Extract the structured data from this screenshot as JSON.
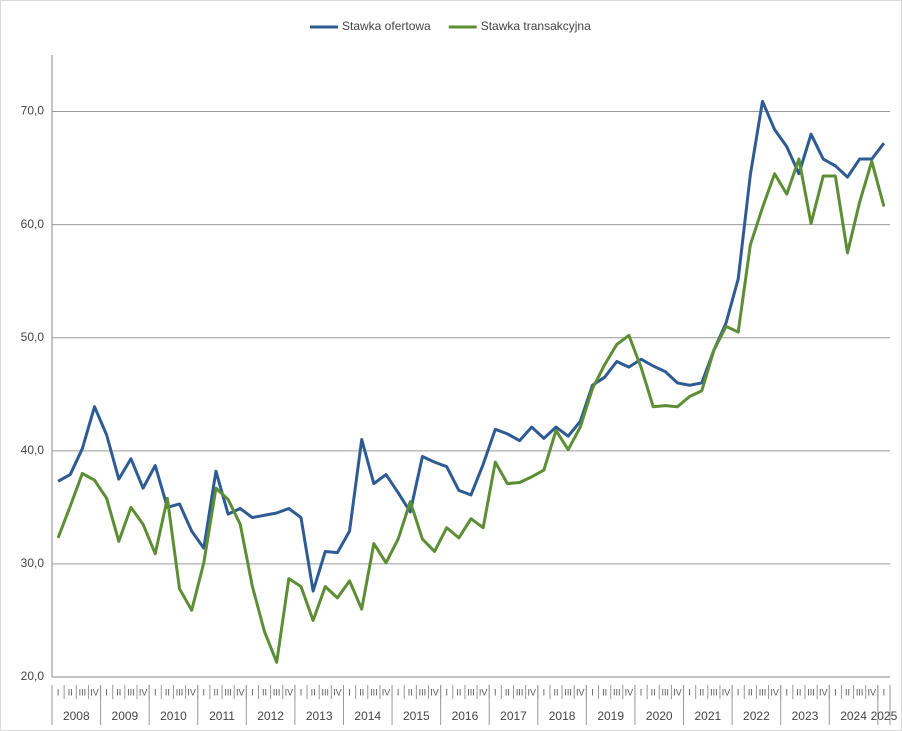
{
  "chart_data": {
    "type": "line",
    "categories": [
      "I",
      "II",
      "III",
      "IV",
      "I",
      "II",
      "III",
      "IV",
      "I",
      "II",
      "III",
      "IV",
      "I",
      "II",
      "III",
      "IV",
      "I",
      "II",
      "III",
      "IV",
      "I",
      "II",
      "III",
      "IV",
      "I",
      "II",
      "III",
      "IV",
      "I",
      "II",
      "III",
      "IV",
      "I",
      "II",
      "III",
      "IV",
      "I",
      "II",
      "III",
      "IV",
      "I",
      "II",
      "III",
      "IV",
      "I",
      "II",
      "III",
      "IV",
      "I",
      "II",
      "III",
      "IV",
      "I",
      "II",
      "III",
      "IV",
      "I",
      "II",
      "III",
      "IV",
      "I",
      "II",
      "III",
      "IV",
      "I",
      "II",
      "III",
      "IV",
      "I"
    ],
    "category_groups": [
      "2008",
      "2009",
      "2010",
      "2011",
      "2012",
      "2013",
      "2014",
      "2015",
      "2016",
      "2017",
      "2018",
      "2019",
      "2020",
      "2021",
      "2022",
      "2023",
      "2024",
      "2025"
    ],
    "series": [
      {
        "name": "Stawka ofertowa",
        "color": "#2e5b94",
        "values": [
          37.3,
          37.9,
          40.2,
          43.9,
          41.4,
          37.5,
          39.3,
          36.7,
          38.7,
          35.0,
          35.3,
          32.9,
          31.4,
          38.2,
          34.4,
          34.9,
          34.1,
          34.3,
          34.5,
          34.9,
          34.1,
          27.6,
          31.1,
          31.0,
          32.9,
          41.0,
          37.1,
          37.9,
          36.3,
          34.6,
          39.5,
          39.0,
          38.6,
          36.5,
          36.1,
          38.8,
          41.9,
          41.5,
          40.9,
          42.1,
          41.1,
          42.1,
          41.3,
          42.6,
          45.8,
          46.5,
          47.9,
          47.4,
          48.1,
          47.5,
          47.0,
          46.0,
          45.8,
          46.0,
          48.9,
          51.3,
          55.2,
          64.4,
          70.9,
          68.4,
          66.9,
          64.5,
          68.0,
          65.8,
          65.2,
          64.2,
          65.8,
          65.8,
          67.2
        ]
      },
      {
        "name": "Stawka transakcyjna",
        "color": "#5d8d35",
        "values": [
          32.3,
          35.1,
          38.0,
          37.4,
          35.8,
          32.0,
          35.0,
          33.5,
          30.9,
          35.8,
          27.8,
          25.9,
          30.1,
          36.7,
          35.7,
          33.5,
          28.0,
          24.0,
          21.3,
          28.7,
          28.0,
          25.0,
          28.0,
          27.0,
          28.5,
          26.0,
          31.8,
          30.1,
          32.2,
          35.5,
          32.2,
          31.1,
          33.2,
          32.3,
          34.0,
          33.2,
          39.0,
          37.1,
          37.2,
          37.7,
          38.3,
          41.8,
          40.1,
          42.1,
          45.5,
          47.6,
          49.4,
          50.2,
          47.4,
          43.9,
          44.0,
          43.9,
          44.8,
          45.3,
          48.9,
          51.0,
          50.5,
          58.2,
          61.5,
          64.5,
          62.7,
          65.8,
          60.1,
          64.3,
          64.3,
          57.5,
          62.0,
          65.6,
          61.6
        ]
      }
    ],
    "ylim": [
      20,
      75
    ],
    "yticks": [
      {
        "value": 20,
        "label": "20,0"
      },
      {
        "value": 30,
        "label": "30,0"
      },
      {
        "value": 40,
        "label": "40,0"
      },
      {
        "value": 50,
        "label": "50,0"
      },
      {
        "value": 60,
        "label": "60,0"
      },
      {
        "value": 70,
        "label": "70,0"
      }
    ],
    "grid": true
  }
}
